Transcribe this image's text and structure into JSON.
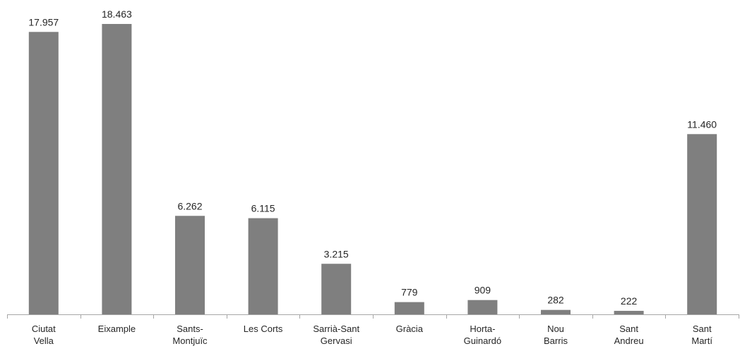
{
  "chart_data": {
    "type": "bar",
    "categories": [
      [
        "Ciutat",
        "Vella"
      ],
      [
        "Eixample"
      ],
      [
        "Sants-",
        "Montjuïc"
      ],
      [
        "Les Corts"
      ],
      [
        "Sarrià-Sant",
        "Gervasi"
      ],
      [
        "Gràcia"
      ],
      [
        "Horta-",
        "Guinardó"
      ],
      [
        "Nou",
        "Barris"
      ],
      [
        "Sant",
        "Andreu"
      ],
      [
        "Sant",
        "Martí"
      ]
    ],
    "values": [
      17957,
      18463,
      6262,
      6115,
      3215,
      779,
      909,
      282,
      222,
      11460
    ],
    "data_labels": [
      "17.957",
      "18.463",
      "6.262",
      "6.115",
      "3.215",
      "779",
      "909",
      "282",
      "222",
      "11.460"
    ],
    "title": "",
    "xlabel": "",
    "ylabel": "",
    "ylim": [
      0,
      18463
    ],
    "grid": false,
    "legend": "none",
    "bar_color": "#7f7f7f",
    "axis_color": "#a6a6a6",
    "label_color": "#262626"
  }
}
